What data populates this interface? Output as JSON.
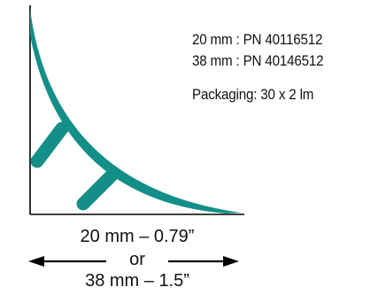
{
  "specs": {
    "line_1": "20 mm : PN 40116512",
    "line_2": "38 mm : PN 40146512",
    "packaging": "Packaging: 30 x 2 lm"
  },
  "dimension": {
    "size_1": "20 mm – 0.79”",
    "separator": "or",
    "size_2": "38 mm – 1.5”"
  },
  "colors": {
    "profile": "#138f88",
    "lines": "#000000"
  }
}
